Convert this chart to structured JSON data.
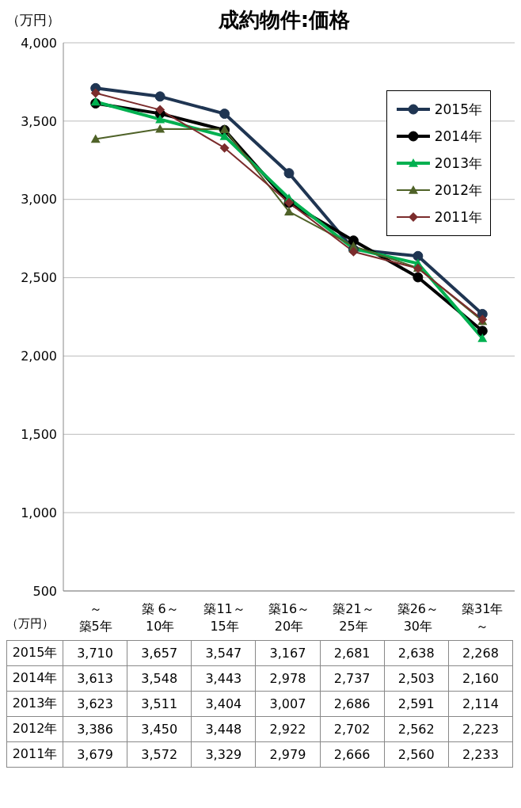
{
  "chart_data": {
    "type": "line",
    "title": "成約物件:価格",
    "ylabel": "（万円）",
    "categories": [
      "～築5年",
      "築 6～10年",
      "築11～15年",
      "築16～20年",
      "築21～25年",
      "築26～30年",
      "築31年～"
    ],
    "series": [
      {
        "name": "2015年",
        "color": "#1f3552",
        "marker": "circle",
        "values": [
          3710,
          3657,
          3547,
          3167,
          2681,
          2638,
          2268
        ],
        "value_labels": [
          "3,710",
          "3,657",
          "3,547",
          "3,167",
          "2,681",
          "2,638",
          "2,268"
        ]
      },
      {
        "name": "2014年",
        "color": "#000000",
        "marker": "circle",
        "values": [
          3613,
          3548,
          3443,
          2978,
          2737,
          2503,
          2160
        ],
        "value_labels": [
          "3,613",
          "3,548",
          "3,443",
          "2,978",
          "2,737",
          "2,503",
          "2,160"
        ]
      },
      {
        "name": "2013年",
        "color": "#00b050",
        "marker": "triangle",
        "values": [
          3623,
          3511,
          3404,
          3007,
          2686,
          2591,
          2114
        ],
        "value_labels": [
          "3,623",
          "3,511",
          "3,404",
          "3,007",
          "2,686",
          "2,591",
          "2,114"
        ]
      },
      {
        "name": "2012年",
        "color": "#4f6228",
        "marker": "triangle",
        "values": [
          3386,
          3450,
          3448,
          2922,
          2702,
          2562,
          2223
        ],
        "value_labels": [
          "3,386",
          "3,450",
          "3,448",
          "2,922",
          "2,702",
          "2,562",
          "2,223"
        ]
      },
      {
        "name": "2011年",
        "color": "#7b2c2c",
        "marker": "diamond",
        "values": [
          3679,
          3572,
          3329,
          2979,
          2666,
          2560,
          2233
        ],
        "value_labels": [
          "3,679",
          "3,572",
          "3,329",
          "2,979",
          "2,666",
          "2,560",
          "2,233"
        ]
      }
    ],
    "ylim": [
      500,
      4000
    ],
    "yticks": [
      {
        "value": 500,
        "label": "500"
      },
      {
        "value": 1000,
        "label": "1,000"
      },
      {
        "value": 1500,
        "label": "1,500"
      },
      {
        "value": 2000,
        "label": "2,000"
      },
      {
        "value": 2500,
        "label": "2,500"
      },
      {
        "value": 3000,
        "label": "3,000"
      },
      {
        "value": 3500,
        "label": "3,500"
      },
      {
        "value": 4000,
        "label": "4,000"
      }
    ],
    "grid": "y",
    "legend": "top right",
    "annotations": [
      "（万円）"
    ]
  }
}
